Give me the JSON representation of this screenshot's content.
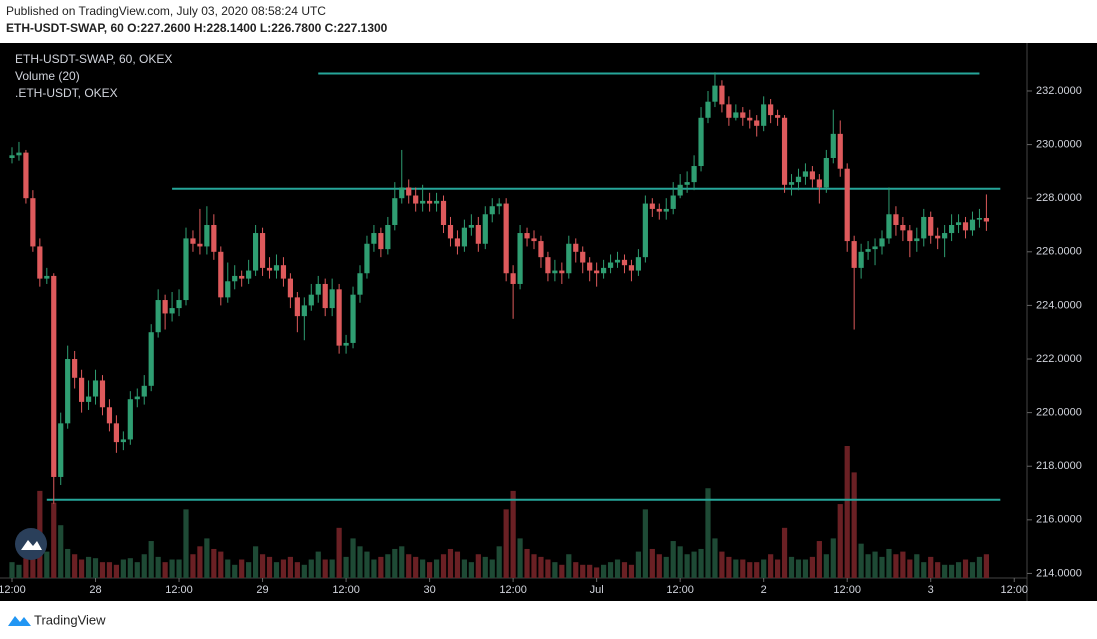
{
  "chart_data": {
    "type": "candlestick",
    "published": "Published on TradingView.com, July 03, 2020 08:58:24 UTC",
    "symbol_line": "ETH-USDT-SWAP, 60",
    "ohlc_line": "O:227.2600 H:228.1400 L:226.7800 C:227.1300",
    "legend": [
      "ETH-USDT-SWAP, 60, OKEX",
      "Volume (20)",
      ".ETH-USDT, OKEX"
    ],
    "brand": "TradingView",
    "up_color": "#2f9e72",
    "down_color": "#de5a5c",
    "volume_up_color": "#1e4a35",
    "volume_down_color": "#6a2024",
    "level_color": "#26a69a",
    "open": [
      229.5,
      229.6,
      229.7,
      228.0,
      226.2,
      225.0,
      225.1,
      217.6,
      219.6,
      222.0,
      221.3,
      220.4,
      220.6,
      221.2,
      220.2,
      219.6,
      218.9,
      219.0,
      220.5,
      220.6,
      221.0,
      223.0,
      224.2,
      223.7,
      223.9,
      224.2,
      226.5,
      226.3,
      226.2,
      227.0,
      226.0,
      224.3,
      224.9,
      225.1,
      225.0,
      225.3,
      226.7,
      225.4,
      225.3,
      225.5,
      225.0,
      224.3,
      223.6,
      224.0,
      224.4,
      224.8,
      223.9,
      224.6,
      222.5,
      222.6,
      224.4,
      225.2,
      226.3,
      226.7,
      226.1,
      227.0,
      228.0,
      228.4,
      228.1,
      227.8,
      227.9,
      227.8,
      227.9,
      227.0,
      226.5,
      226.2,
      226.9,
      227.0,
      226.3,
      227.4,
      227.7,
      227.8,
      225.2,
      224.8,
      226.7,
      226.5,
      226.4,
      225.8,
      225.2,
      225.3,
      225.2,
      226.3,
      226.0,
      225.6,
      225.3,
      225.2,
      225.4,
      225.6,
      225.7,
      225.5,
      225.3,
      225.8,
      227.8,
      227.6,
      227.5,
      227.6,
      228.1,
      228.5,
      228.6,
      229.2,
      231.0,
      231.6,
      232.2,
      231.5,
      231.0,
      231.2,
      231.0,
      230.9,
      230.7,
      231.5,
      231.1,
      231.0,
      228.5,
      228.6,
      228.8,
      229.0,
      228.7,
      228.4,
      229.5,
      230.4,
      229.1,
      226.4,
      225.4,
      226.0,
      226.1,
      226.2,
      226.5,
      227.4,
      227.0,
      226.8,
      226.4,
      226.5,
      227.3,
      226.6,
      226.5,
      226.7,
      227.0,
      227.1,
      226.8,
      227.2,
      227.26
    ],
    "high": [
      229.9,
      230.1,
      229.8,
      228.3,
      226.5,
      225.4,
      225.2,
      220.0,
      222.5,
      222.3,
      221.6,
      221.2,
      221.6,
      221.4,
      220.5,
      219.9,
      219.3,
      220.8,
      220.9,
      221.4,
      223.3,
      224.6,
      224.4,
      224.5,
      224.6,
      226.9,
      226.8,
      227.6,
      227.7,
      227.4,
      226.2,
      225.6,
      225.5,
      225.3,
      225.7,
      227.0,
      226.9,
      225.8,
      225.9,
      225.8,
      225.2,
      224.5,
      224.3,
      224.8,
      225.1,
      225.0,
      225.0,
      224.8,
      222.9,
      224.7,
      225.5,
      226.6,
      227.0,
      226.9,
      227.3,
      228.6,
      229.8,
      228.7,
      228.4,
      228.5,
      228.2,
      228.2,
      228.1,
      227.3,
      226.8,
      227.2,
      227.4,
      227.3,
      227.7,
      228.0,
      228.0,
      228.0,
      225.5,
      227.0,
      226.9,
      226.8,
      226.6,
      226.0,
      225.7,
      225.6,
      226.6,
      226.5,
      226.2,
      225.8,
      225.6,
      225.7,
      225.9,
      226.0,
      225.9,
      225.7,
      226.1,
      228.1,
      228.0,
      227.8,
      228.0,
      228.6,
      228.9,
      229.0,
      229.6,
      231.4,
      232.0,
      232.7,
      232.4,
      231.8,
      231.5,
      231.4,
      231.3,
      231.1,
      231.8,
      231.7,
      231.3,
      231.1,
      228.9,
      229.1,
      229.3,
      229.2,
      228.9,
      229.8,
      231.3,
      230.9,
      229.3,
      226.6,
      226.3,
      226.4,
      226.5,
      226.8,
      228.4,
      227.7,
      227.3,
      227.0,
      226.9,
      227.6,
      227.5,
      226.9,
      227.0,
      227.4,
      227.4,
      227.3,
      227.5,
      227.6,
      228.14
    ],
    "low": [
      229.3,
      229.4,
      227.8,
      226.0,
      224.7,
      224.8,
      216.6,
      217.3,
      219.4,
      220.9,
      220.0,
      220.1,
      220.3,
      219.9,
      219.3,
      218.5,
      218.6,
      218.8,
      220.2,
      220.3,
      220.8,
      222.8,
      223.1,
      223.4,
      223.6,
      224.0,
      226.0,
      225.9,
      225.9,
      225.7,
      224.0,
      224.1,
      224.6,
      224.7,
      224.8,
      225.1,
      225.1,
      225.0,
      225.0,
      224.7,
      223.9,
      223.0,
      222.7,
      223.8,
      224.1,
      223.6,
      223.6,
      222.2,
      222.2,
      222.4,
      224.1,
      225.0,
      226.0,
      225.8,
      225.9,
      226.8,
      227.8,
      227.8,
      227.5,
      227.5,
      227.5,
      227.5,
      226.7,
      226.2,
      225.9,
      226.0,
      226.6,
      226.0,
      226.1,
      227.1,
      227.4,
      224.9,
      223.5,
      224.6,
      226.2,
      226.1,
      225.4,
      224.9,
      224.9,
      224.8,
      225.0,
      225.6,
      225.2,
      224.9,
      224.7,
      225.0,
      225.2,
      225.4,
      225.2,
      224.9,
      225.1,
      225.6,
      227.3,
      227.2,
      227.2,
      227.4,
      228.0,
      228.2,
      228.3,
      229.0,
      230.8,
      231.4,
      231.2,
      230.7,
      230.9,
      230.7,
      230.6,
      230.3,
      230.5,
      230.8,
      230.7,
      228.2,
      228.1,
      228.3,
      228.5,
      228.4,
      227.8,
      228.2,
      229.3,
      228.8,
      226.0,
      223.1,
      225.0,
      225.7,
      225.5,
      225.9,
      226.3,
      226.6,
      226.4,
      225.8,
      226.0,
      226.2,
      226.3,
      226.1,
      225.8,
      226.4,
      226.7,
      226.5,
      226.6,
      226.9,
      226.78
    ],
    "close": [
      229.6,
      229.7,
      228.0,
      226.2,
      225.0,
      225.1,
      217.6,
      219.6,
      222.0,
      221.3,
      220.4,
      220.6,
      221.2,
      220.2,
      219.6,
      218.9,
      219.0,
      220.5,
      220.6,
      221.0,
      223.0,
      224.2,
      223.7,
      223.9,
      224.2,
      226.5,
      226.3,
      226.2,
      227.0,
      226.0,
      224.3,
      224.9,
      225.1,
      225.0,
      225.3,
      226.7,
      225.4,
      225.3,
      225.5,
      225.0,
      224.3,
      223.6,
      224.0,
      224.4,
      224.8,
      223.9,
      224.6,
      222.5,
      222.6,
      224.4,
      225.2,
      226.3,
      226.7,
      226.1,
      227.0,
      228.0,
      228.4,
      228.1,
      227.8,
      227.9,
      227.8,
      227.9,
      227.0,
      226.5,
      226.2,
      226.9,
      227.0,
      226.3,
      227.4,
      227.7,
      227.8,
      225.2,
      224.8,
      226.7,
      226.5,
      226.4,
      225.8,
      225.2,
      225.3,
      225.2,
      226.3,
      226.0,
      225.6,
      225.3,
      225.2,
      225.4,
      225.6,
      225.7,
      225.5,
      225.3,
      225.8,
      227.8,
      227.6,
      227.5,
      227.6,
      228.1,
      228.5,
      228.6,
      229.2,
      231.0,
      231.6,
      232.2,
      231.5,
      231.0,
      231.2,
      231.0,
      230.9,
      230.7,
      231.5,
      231.1,
      231.0,
      228.5,
      228.6,
      228.8,
      229.0,
      228.7,
      228.4,
      229.5,
      230.4,
      229.1,
      226.4,
      225.4,
      226.0,
      226.1,
      226.2,
      226.5,
      227.4,
      227.0,
      226.8,
      226.4,
      226.5,
      227.3,
      226.6,
      226.5,
      226.7,
      227.0,
      227.1,
      226.8,
      227.2,
      227.26,
      227.13
    ],
    "volume": [
      12,
      10,
      15,
      30,
      66,
      20,
      57,
      40,
      22,
      18,
      14,
      16,
      15,
      12,
      12,
      10,
      14,
      15,
      12,
      18,
      28,
      16,
      12,
      14,
      14,
      52,
      18,
      24,
      30,
      22,
      20,
      14,
      10,
      14,
      12,
      24,
      18,
      16,
      12,
      14,
      16,
      12,
      10,
      14,
      20,
      14,
      14,
      38,
      16,
      30,
      24,
      20,
      14,
      16,
      18,
      22,
      24,
      18,
      16,
      14,
      12,
      14,
      18,
      22,
      20,
      14,
      12,
      18,
      16,
      14,
      24,
      52,
      66,
      30,
      22,
      18,
      16,
      14,
      12,
      10,
      18,
      12,
      10,
      10,
      8,
      10,
      12,
      14,
      12,
      10,
      20,
      52,
      22,
      18,
      16,
      28,
      24,
      18,
      20,
      22,
      68,
      30,
      20,
      16,
      14,
      14,
      12,
      12,
      14,
      18,
      14,
      38,
      16,
      14,
      14,
      16,
      28,
      18,
      30,
      56,
      100,
      80,
      26,
      18,
      20,
      16,
      22,
      18,
      20,
      14,
      18,
      12,
      16,
      12,
      10,
      10,
      12,
      14,
      12,
      16,
      18
    ],
    "levels": [
      {
        "price": 232.65,
        "from": 44,
        "to": 139
      },
      {
        "price": 228.35,
        "from": 23,
        "to": 142
      },
      {
        "price": 216.75,
        "from": 5,
        "to": 142
      }
    ],
    "ylim": [
      213.83,
      233.79
    ],
    "yticks": [
      {
        "value": 214,
        "label": "214.0000"
      },
      {
        "value": 216,
        "label": "216.0000"
      },
      {
        "value": 218,
        "label": "218.0000"
      },
      {
        "value": 220,
        "label": "220.0000"
      },
      {
        "value": 222,
        "label": "222.0000"
      },
      {
        "value": 224,
        "label": "224.0000"
      },
      {
        "value": 226,
        "label": "226.0000"
      },
      {
        "value": 228,
        "label": "228.0000"
      },
      {
        "value": 230,
        "label": "230.0000"
      },
      {
        "value": 232,
        "label": "232.0000"
      }
    ],
    "xticks": [
      {
        "value": 0,
        "label": "12:00"
      },
      {
        "value": 12,
        "label": "28"
      },
      {
        "value": 24,
        "label": "12:00"
      },
      {
        "value": 36,
        "label": "29"
      },
      {
        "value": 48,
        "label": "12:00"
      },
      {
        "value": 60,
        "label": "30"
      },
      {
        "value": 72,
        "label": "12:00"
      },
      {
        "value": 84,
        "label": "Jul"
      },
      {
        "value": 96,
        "label": "12:00"
      },
      {
        "value": 108,
        "label": "2"
      },
      {
        "value": 120,
        "label": "12:00"
      },
      {
        "value": 132,
        "label": "3"
      },
      {
        "value": 144,
        "label": "12:00"
      }
    ]
  }
}
